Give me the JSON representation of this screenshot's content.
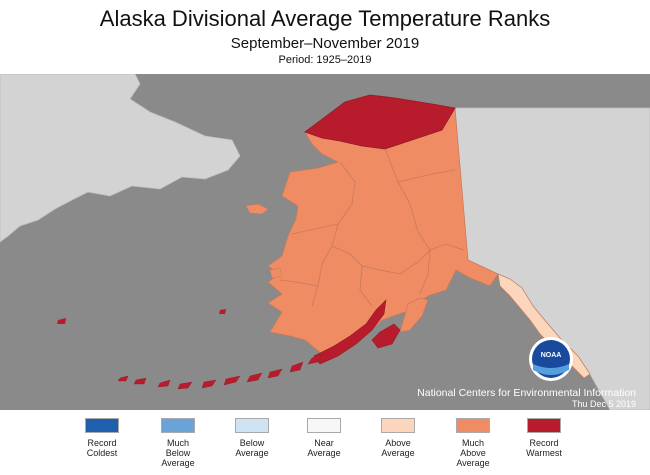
{
  "header": {
    "title": "Alaska Divisional Average Temperature Ranks",
    "subtitle": "September–November 2019",
    "period": "Period: 1925–2019"
  },
  "credit": {
    "org": "National Centers for Environmental Information",
    "date": "Thu Dec  5 2019",
    "logo_text": "NOAA"
  },
  "legend": [
    {
      "label": "Record\nColdest",
      "color": "#1f5fae"
    },
    {
      "label": "Much\nBelow\nAverage",
      "color": "#6aa3d8"
    },
    {
      "label": "Below\nAverage",
      "color": "#cfe3f3"
    },
    {
      "label": "Near\nAverage",
      "color": "#f7f7f7"
    },
    {
      "label": "Above\nAverage",
      "color": "#fbd5bc"
    },
    {
      "label": "Much\nAbove\nAverage",
      "color": "#f08c63"
    },
    {
      "label": "Record\nWarmest",
      "color": "#b81c2c"
    }
  ],
  "map_colors": {
    "ocean": "#8a8a8a",
    "land": "#d3d3d3",
    "much_above": "#f08c63",
    "record_warmest": "#b81c2c",
    "above": "#fbd5bc"
  }
}
